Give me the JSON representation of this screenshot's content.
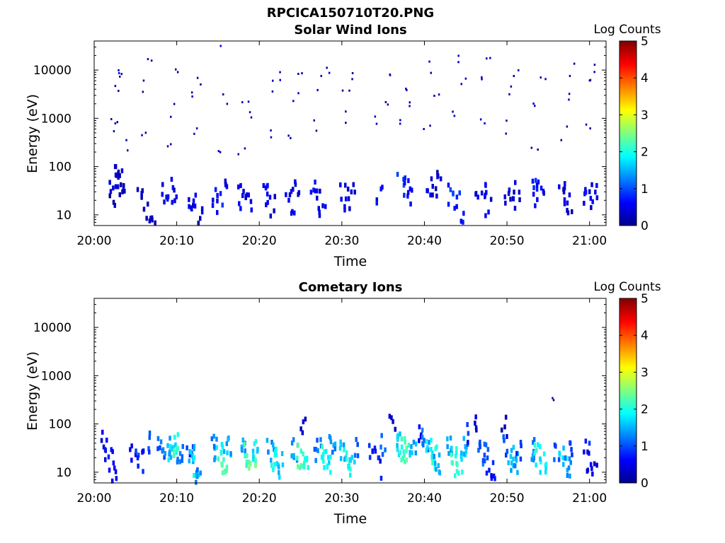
{
  "figure_title": "RPCICA150710T20.PNG",
  "chart_data": [
    {
      "type": "heatmap",
      "title": "Solar Wind Ions",
      "xlabel": "Time",
      "ylabel": "Energy (eV)",
      "y_scale": "log",
      "ylim": [
        6,
        40000
      ],
      "xlim": [
        "20:00",
        "21:02"
      ],
      "x_ticks": [
        "20:00",
        "20:10",
        "20:20",
        "20:30",
        "20:40",
        "20:50",
        "21:00"
      ],
      "y_ticks": [
        "10",
        "100",
        "1000",
        "10000"
      ],
      "colorbar": {
        "label": "Log Counts",
        "range": [
          0,
          5
        ],
        "ticks": [
          "0",
          "1",
          "2",
          "3",
          "4",
          "5"
        ],
        "colormap": "jet"
      },
      "scan_period_min": 3.1,
      "cells": [
        [
          2.2,
          65,
          0.3
        ],
        [
          2.2,
          28,
          0.2
        ],
        [
          2.5,
          60,
          0.3
        ],
        [
          3.0,
          55,
          0.4
        ],
        [
          3.3,
          45,
          0.2
        ],
        [
          3.5,
          30,
          0.3
        ],
        [
          2.1,
          500,
          0.2
        ],
        [
          2.3,
          1100,
          0.2
        ],
        [
          2.6,
          3000,
          0.2
        ],
        [
          2.8,
          10000,
          0.2
        ],
        [
          3.3,
          11000,
          0.2
        ],
        [
          3.6,
          300,
          0.2
        ],
        [
          5.5,
          35,
          0.3
        ],
        [
          6.3,
          14,
          0.4
        ],
        [
          6.8,
          8,
          0.3
        ],
        [
          5.7,
          4000,
          0.2
        ],
        [
          6.5,
          17000,
          0.2
        ],
        [
          6.0,
          600,
          0.2
        ],
        [
          8.5,
          25,
          0.5
        ],
        [
          9.0,
          30,
          0.6
        ],
        [
          9.5,
          35,
          0.4
        ],
        [
          9.2,
          1500,
          0.2
        ],
        [
          9.8,
          7000,
          0.2
        ],
        [
          8.9,
          200,
          0.2
        ],
        [
          11.5,
          25,
          0.4
        ],
        [
          12.0,
          18,
          0.5
        ],
        [
          12.5,
          12,
          0.3
        ],
        [
          12.1,
          3000,
          0.2
        ],
        [
          12.8,
          6000,
          0.2
        ],
        [
          11.9,
          500,
          0.2
        ],
        [
          14.5,
          25,
          0.6
        ],
        [
          15.0,
          20,
          0.8
        ],
        [
          15.5,
          30,
          0.5
        ],
        [
          14.9,
          32000,
          0.3
        ],
        [
          15.6,
          2000,
          0.2
        ],
        [
          15.2,
          180,
          0.2
        ],
        [
          17.5,
          22,
          0.6
        ],
        [
          18.0,
          28,
          0.4
        ],
        [
          18.6,
          18,
          0.5
        ],
        [
          18.2,
          2500,
          0.2
        ],
        [
          18.9,
          1000,
          0.2
        ],
        [
          17.8,
          250,
          0.2
        ],
        [
          20.5,
          30,
          0.6
        ],
        [
          21.0,
          22,
          0.5
        ],
        [
          21.5,
          16,
          0.4
        ],
        [
          21.3,
          4000,
          0.2
        ],
        [
          22.1,
          8000,
          0.2
        ],
        [
          21.0,
          500,
          0.2
        ],
        [
          23.5,
          25,
          0.5
        ],
        [
          24.0,
          18,
          0.6
        ],
        [
          24.5,
          30,
          0.4
        ],
        [
          24.2,
          3000,
          0.2
        ],
        [
          24.9,
          9000,
          0.2
        ],
        [
          23.8,
          400,
          0.2
        ],
        [
          26.5,
          30,
          0.6
        ],
        [
          27.0,
          22,
          0.4
        ],
        [
          27.5,
          15,
          0.5
        ],
        [
          27.3,
          5000,
          0.2
        ],
        [
          28.0,
          9500,
          0.2
        ],
        [
          26.9,
          600,
          0.2
        ],
        [
          30.0,
          30,
          0.5
        ],
        [
          30.5,
          22,
          0.4
        ],
        [
          31.0,
          35,
          0.3
        ],
        [
          30.4,
          3500,
          0.2
        ],
        [
          31.4,
          8000,
          0.2
        ],
        [
          30.0,
          900,
          0.2
        ],
        [
          34.5,
          30,
          0.6
        ],
        [
          35.2,
          1500,
          0.2
        ],
        [
          35.8,
          8000,
          0.2
        ],
        [
          34.0,
          700,
          0.2
        ],
        [
          37.0,
          40,
          0.9
        ],
        [
          37.5,
          35,
          0.6
        ],
        [
          38.0,
          28,
          0.4
        ],
        [
          37.4,
          4000,
          0.2
        ],
        [
          38.2,
          1500,
          0.2
        ],
        [
          37.0,
          600,
          0.2
        ],
        [
          40.5,
          40,
          0.5
        ],
        [
          41.0,
          30,
          0.4
        ],
        [
          41.5,
          60,
          0.3
        ],
        [
          40.8,
          11000,
          0.2
        ],
        [
          41.3,
          4000,
          0.2
        ],
        [
          40.2,
          800,
          0.2
        ],
        [
          43.2,
          25,
          0.8
        ],
        [
          43.7,
          18,
          0.9
        ],
        [
          44.2,
          12,
          0.6
        ],
        [
          43.8,
          17000,
          0.2
        ],
        [
          44.5,
          6000,
          0.2
        ],
        [
          43.3,
          900,
          0.2
        ],
        [
          46.5,
          38,
          0.5
        ],
        [
          47.0,
          25,
          0.5
        ],
        [
          47.5,
          16,
          0.4
        ],
        [
          47.2,
          6000,
          0.2
        ],
        [
          47.8,
          13000,
          0.2
        ],
        [
          46.8,
          900,
          0.2
        ],
        [
          50.0,
          30,
          0.5
        ],
        [
          50.5,
          22,
          0.4
        ],
        [
          51.0,
          35,
          0.3
        ],
        [
          50.4,
          3000,
          0.2
        ],
        [
          50.9,
          7000,
          0.2
        ],
        [
          49.9,
          600,
          0.2
        ],
        [
          53.0,
          30,
          0.7
        ],
        [
          53.5,
          25,
          0.6
        ],
        [
          54.0,
          35,
          0.5
        ],
        [
          53.5,
          2000,
          0.2
        ],
        [
          54.2,
          7000,
          0.2
        ],
        [
          53.2,
          300,
          0.2
        ],
        [
          56.5,
          30,
          0.5
        ],
        [
          57.0,
          22,
          0.4
        ],
        [
          57.5,
          16,
          0.3
        ],
        [
          57.2,
          3000,
          0.2
        ],
        [
          57.9,
          9000,
          0.2
        ],
        [
          56.8,
          500,
          0.2
        ],
        [
          59.5,
          25,
          0.6
        ],
        [
          60.0,
          18,
          0.5
        ],
        [
          60.5,
          40,
          0.4
        ],
        [
          60.1,
          5000,
          0.2
        ],
        [
          60.8,
          11000,
          0.2
        ],
        [
          59.8,
          800,
          0.2
        ]
      ]
    },
    {
      "type": "heatmap",
      "title": "Cometary Ions",
      "xlabel": "Time",
      "ylabel": "Energy (eV)",
      "y_scale": "log",
      "ylim": [
        6,
        40000
      ],
      "xlim": [
        "20:00",
        "21:02"
      ],
      "x_ticks": [
        "20:00",
        "20:10",
        "20:20",
        "20:30",
        "20:40",
        "20:50",
        "21:00"
      ],
      "y_ticks": [
        "10",
        "100",
        "1000",
        "10000"
      ],
      "colorbar": {
        "label": "Log Counts",
        "range": [
          0,
          5
        ],
        "ticks": [
          "0",
          "1",
          "2",
          "3",
          "4",
          "5"
        ],
        "colormap": "jet"
      },
      "scan_period_min": 3.1,
      "cells": [
        [
          1.2,
          45,
          0.5
        ],
        [
          1.6,
          30,
          0.6
        ],
        [
          2.0,
          18,
          0.5
        ],
        [
          2.4,
          10,
          0.4
        ],
        [
          4.5,
          30,
          0.6
        ],
        [
          5.0,
          22,
          0.8
        ],
        [
          5.5,
          18,
          0.7
        ],
        [
          6.5,
          40,
          0.9
        ],
        [
          8.0,
          35,
          1.1
        ],
        [
          8.8,
          30,
          1.4
        ],
        [
          9.3,
          25,
          1.7
        ],
        [
          9.6,
          35,
          2.1
        ],
        [
          10.2,
          22,
          1.2
        ],
        [
          11.5,
          35,
          0.8
        ],
        [
          11.8,
          25,
          1.5
        ],
        [
          12.2,
          14,
          1.8
        ],
        [
          12.5,
          8,
          1.3
        ],
        [
          14.3,
          32,
          1.2
        ],
        [
          15.0,
          22,
          2.0
        ],
        [
          15.5,
          15,
          2.2
        ],
        [
          16.0,
          30,
          1.5
        ],
        [
          17.8,
          30,
          1.4
        ],
        [
          18.4,
          22,
          2.1
        ],
        [
          19.0,
          16,
          2.4
        ],
        [
          19.4,
          32,
          1.8
        ],
        [
          21.2,
          28,
          1.3
        ],
        [
          21.7,
          18,
          1.9
        ],
        [
          22.4,
          14,
          1.6
        ],
        [
          24.2,
          32,
          1.4
        ],
        [
          24.8,
          22,
          2.2
        ],
        [
          25.4,
          15,
          2.0
        ],
        [
          25.2,
          75,
          0.3
        ],
        [
          27.0,
          30,
          1.2
        ],
        [
          27.6,
          22,
          2.0
        ],
        [
          28.2,
          16,
          1.8
        ],
        [
          28.6,
          35,
          1.3
        ],
        [
          30.0,
          30,
          1.5
        ],
        [
          30.5,
          20,
          2.1
        ],
        [
          31.0,
          14,
          1.8
        ],
        [
          31.5,
          38,
          1.0
        ],
        [
          33.5,
          30,
          0.7
        ],
        [
          34.0,
          20,
          0.8
        ],
        [
          34.5,
          10,
          0.6
        ],
        [
          35.0,
          40,
          1.0
        ],
        [
          36.0,
          90,
          0.4
        ],
        [
          36.5,
          40,
          1.6
        ],
        [
          37.2,
          30,
          2.1
        ],
        [
          37.8,
          25,
          2.3
        ],
        [
          38.4,
          40,
          1.5
        ],
        [
          39.5,
          70,
          0.6
        ],
        [
          40.0,
          45,
          1.2
        ],
        [
          40.5,
          30,
          1.8
        ],
        [
          41.0,
          20,
          2.0
        ],
        [
          41.3,
          14,
          1.4
        ],
        [
          43.0,
          40,
          1.5
        ],
        [
          43.5,
          22,
          2.1
        ],
        [
          44.0,
          14,
          1.9
        ],
        [
          44.5,
          35,
          1.6
        ],
        [
          45.0,
          60,
          0.8
        ],
        [
          46.0,
          80,
          0.4
        ],
        [
          46.5,
          40,
          1.0
        ],
        [
          47.2,
          25,
          1.1
        ],
        [
          47.8,
          15,
          0.8
        ],
        [
          48.3,
          10,
          0.6
        ],
        [
          49.8,
          35,
          1.0
        ],
        [
          50.3,
          22,
          1.6
        ],
        [
          50.8,
          16,
          1.4
        ],
        [
          51.2,
          30,
          0.8
        ],
        [
          49.5,
          80,
          0.3
        ],
        [
          53.0,
          30,
          1.3
        ],
        [
          53.6,
          22,
          2.0
        ],
        [
          54.2,
          16,
          1.8
        ],
        [
          56.0,
          30,
          1.0
        ],
        [
          56.6,
          20,
          1.6
        ],
        [
          57.2,
          14,
          1.4
        ],
        [
          57.7,
          40,
          0.8
        ],
        [
          55.8,
          420,
          0.3
        ],
        [
          59.5,
          30,
          0.7
        ],
        [
          60.0,
          18,
          0.5
        ],
        [
          60.3,
          10,
          0.4
        ]
      ]
    }
  ]
}
